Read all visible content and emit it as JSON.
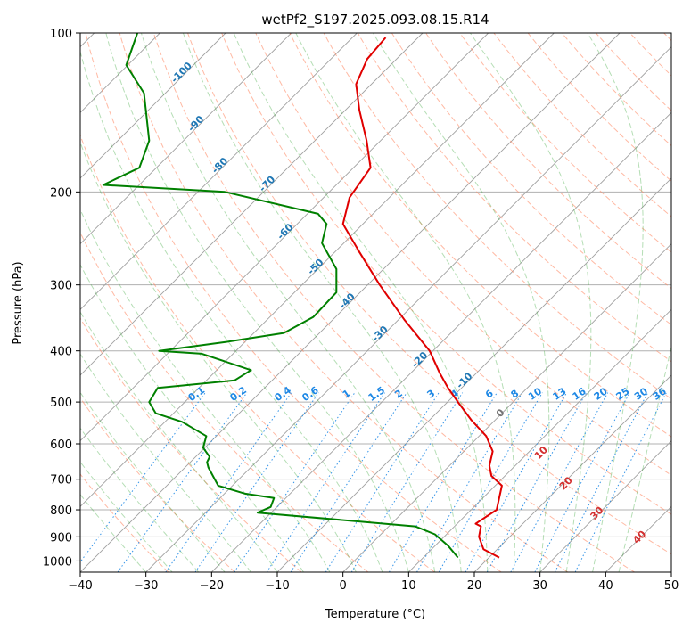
{
  "chart_data": {
    "type": "skew-t",
    "title": "wetPf2_S197.2025.093.08.15.R14",
    "xlabel": "Temperature (°C)",
    "ylabel": "Pressure (hPa)",
    "xlim": [
      -40,
      50
    ],
    "ylim": [
      1050,
      100
    ],
    "y_scale": "log",
    "x_ticks": [
      -40,
      -30,
      -20,
      -10,
      0,
      10,
      20,
      30,
      40,
      50
    ],
    "y_ticks": [
      100,
      200,
      300,
      400,
      500,
      600,
      700,
      800,
      900,
      1000
    ],
    "grid": true,
    "isotherms_skewed": true,
    "colors": {
      "temperature": "#e00000",
      "dewpoint": "#008000",
      "isotherm": "#a0a0a0",
      "dry_adiabat": "#ff8a65",
      "moist_adiabat": "#2ca02c",
      "mixing_ratio": "#1e88e5",
      "isotherm_label": "#1f77b4",
      "upper_label": "#d32f2f",
      "zero_label": "#757575"
    },
    "series": [
      {
        "name": "Temperature",
        "points": [
          [
            23.8,
            985
          ],
          [
            21.4,
            950
          ],
          [
            20.7,
            900
          ],
          [
            21.0,
            860
          ],
          [
            20.2,
            850
          ],
          [
            23.4,
            800
          ],
          [
            24.2,
            720
          ],
          [
            22.6,
            690
          ],
          [
            22.3,
            660
          ],
          [
            22.8,
            620
          ],
          [
            21.8,
            580
          ],
          [
            19.5,
            540
          ],
          [
            17.5,
            500
          ],
          [
            16.0,
            470
          ],
          [
            14.7,
            440
          ],
          [
            13.2,
            400
          ],
          [
            9.4,
            350
          ],
          [
            5.6,
            300
          ],
          [
            2.5,
            260
          ],
          [
            0.0,
            230
          ],
          [
            1.0,
            205
          ],
          [
            4.2,
            180
          ],
          [
            3.6,
            160
          ],
          [
            2.5,
            140
          ],
          [
            2.0,
            125
          ],
          [
            3.7,
            112
          ],
          [
            6.5,
            102
          ]
        ]
      },
      {
        "name": "Dewpoint",
        "points": [
          [
            17.5,
            985
          ],
          [
            16.0,
            935
          ],
          [
            14.0,
            890
          ],
          [
            11.0,
            860
          ],
          [
            -13.0,
            810
          ],
          [
            -11.0,
            790
          ],
          [
            -10.5,
            760
          ],
          [
            -15.0,
            745
          ],
          [
            -19.0,
            720
          ],
          [
            -20.5,
            665
          ],
          [
            -20.7,
            650
          ],
          [
            -20.3,
            635
          ],
          [
            -21.3,
            610
          ],
          [
            -20.8,
            580
          ],
          [
            -24.5,
            545
          ],
          [
            -28.5,
            525
          ],
          [
            -29.5,
            500
          ],
          [
            -28.2,
            470
          ],
          [
            -16.5,
            455
          ],
          [
            -14.0,
            435
          ],
          [
            -21.5,
            405
          ],
          [
            -28.0,
            400
          ],
          [
            -18.0,
            385
          ],
          [
            -9.0,
            370
          ],
          [
            -4.5,
            345
          ],
          [
            -1.0,
            310
          ],
          [
            -1.0,
            280
          ],
          [
            -3.2,
            250
          ],
          [
            -2.5,
            230
          ],
          [
            -3.8,
            220
          ],
          [
            -18.0,
            200
          ],
          [
            -36.5,
            194
          ],
          [
            -31.0,
            180
          ],
          [
            -29.5,
            160
          ],
          [
            -30.3,
            130
          ],
          [
            -33.0,
            115
          ],
          [
            -31.3,
            100
          ]
        ]
      }
    ],
    "isotherm_labels": [
      "-100",
      "-90",
      "-80",
      "-70",
      "-60",
      "-50",
      "-40",
      "-30",
      "-20",
      "-10"
    ],
    "mixing_ratio_labels": [
      "0.1",
      "0.2",
      "0.4",
      "0.6",
      "1",
      "1.5",
      "2",
      "3",
      "4",
      "6",
      "8",
      "10",
      "13",
      "16",
      "20",
      "25",
      "30",
      "36"
    ],
    "upper_labels": [
      "0",
      "10",
      "20",
      "30",
      "40"
    ]
  }
}
